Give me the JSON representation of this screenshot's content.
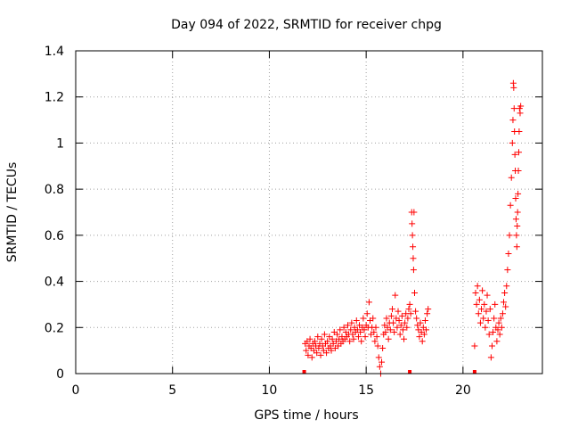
{
  "chart_data": {
    "type": "scatter",
    "title": "Day 094 of 2022, SRMTID for receiver chpg",
    "xlabel": "GPS time / hours",
    "ylabel": "SRMTID / TECUs",
    "xlim": [
      0,
      24.1
    ],
    "ylim": [
      0,
      1.4
    ],
    "x_ticks": [
      0,
      5,
      10,
      15,
      20
    ],
    "x_tick_labels": [
      "0",
      "5",
      "10",
      "15",
      "20"
    ],
    "y_ticks": [
      0,
      0.2,
      0.4,
      0.6,
      0.8,
      1.0,
      1.2,
      1.4
    ],
    "y_tick_labels": [
      "0",
      "0.2",
      "0.4",
      "0.6",
      "0.8",
      "1",
      "1.2",
      "1.4"
    ],
    "grid": true,
    "marker": "plus",
    "color": "#ff0000",
    "baseline_markers_x": [
      11.8,
      17.25,
      20.6
    ],
    "series": [
      {
        "name": "SRMTID",
        "points": [
          [
            11.85,
            0.13
          ],
          [
            11.9,
            0.1
          ],
          [
            11.95,
            0.14
          ],
          [
            12.0,
            0.08
          ],
          [
            12.05,
            0.12
          ],
          [
            12.1,
            0.15
          ],
          [
            12.15,
            0.11
          ],
          [
            12.2,
            0.07
          ],
          [
            12.25,
            0.13
          ],
          [
            12.3,
            0.1
          ],
          [
            12.35,
            0.14
          ],
          [
            12.4,
            0.12
          ],
          [
            12.45,
            0.09
          ],
          [
            12.5,
            0.16
          ],
          [
            12.55,
            0.11
          ],
          [
            12.6,
            0.13
          ],
          [
            12.65,
            0.08
          ],
          [
            12.7,
            0.15
          ],
          [
            12.75,
            0.12
          ],
          [
            12.8,
            0.1
          ],
          [
            12.85,
            0.17
          ],
          [
            12.9,
            0.13
          ],
          [
            12.95,
            0.09
          ],
          [
            13.0,
            0.14
          ],
          [
            13.05,
            0.11
          ],
          [
            13.1,
            0.16
          ],
          [
            13.15,
            0.12
          ],
          [
            13.2,
            0.1
          ],
          [
            13.25,
            0.15
          ],
          [
            13.3,
            0.13
          ],
          [
            13.35,
            0.18
          ],
          [
            13.4,
            0.11
          ],
          [
            13.45,
            0.14
          ],
          [
            13.5,
            0.17
          ],
          [
            13.55,
            0.12
          ],
          [
            13.6,
            0.15
          ],
          [
            13.65,
            0.19
          ],
          [
            13.7,
            0.13
          ],
          [
            13.75,
            0.16
          ],
          [
            13.8,
            0.14
          ],
          [
            13.85,
            0.2
          ],
          [
            13.9,
            0.15
          ],
          [
            13.95,
            0.18
          ],
          [
            14.0,
            0.16
          ],
          [
            14.05,
            0.21
          ],
          [
            14.1,
            0.17
          ],
          [
            14.15,
            0.14
          ],
          [
            14.2,
            0.19
          ],
          [
            14.25,
            0.22
          ],
          [
            14.3,
            0.17
          ],
          [
            14.35,
            0.15
          ],
          [
            14.4,
            0.2
          ],
          [
            14.45,
            0.18
          ],
          [
            14.5,
            0.23
          ],
          [
            14.55,
            0.19
          ],
          [
            14.6,
            0.16
          ],
          [
            14.65,
            0.21
          ],
          [
            14.7,
            0.18
          ],
          [
            14.75,
            0.14
          ],
          [
            14.8,
            0.2
          ],
          [
            14.85,
            0.24
          ],
          [
            14.9,
            0.19
          ],
          [
            14.95,
            0.16
          ],
          [
            15.0,
            0.21
          ],
          [
            15.05,
            0.26
          ],
          [
            15.1,
            0.2
          ],
          [
            15.15,
            0.31
          ],
          [
            15.2,
            0.23
          ],
          [
            15.25,
            0.17
          ],
          [
            15.3,
            0.2
          ],
          [
            15.35,
            0.24
          ],
          [
            15.4,
            0.18
          ],
          [
            15.45,
            0.14
          ],
          [
            15.5,
            0.2
          ],
          [
            15.55,
            0.16
          ],
          [
            15.6,
            0.12
          ],
          [
            15.65,
            0.07
          ],
          [
            15.7,
            0.03
          ],
          [
            15.75,
            0.0
          ],
          [
            15.8,
            0.05
          ],
          [
            15.85,
            0.11
          ],
          [
            15.9,
            0.17
          ],
          [
            15.95,
            0.21
          ],
          [
            16.0,
            0.18
          ],
          [
            16.05,
            0.24
          ],
          [
            16.1,
            0.2
          ],
          [
            16.15,
            0.15
          ],
          [
            16.2,
            0.22
          ],
          [
            16.25,
            0.19
          ],
          [
            16.3,
            0.25
          ],
          [
            16.35,
            0.28
          ],
          [
            16.4,
            0.22
          ],
          [
            16.45,
            0.18
          ],
          [
            16.5,
            0.34
          ],
          [
            16.55,
            0.24
          ],
          [
            16.6,
            0.2
          ],
          [
            16.65,
            0.27
          ],
          [
            16.7,
            0.23
          ],
          [
            16.75,
            0.17
          ],
          [
            16.8,
            0.21
          ],
          [
            16.85,
            0.25
          ],
          [
            16.9,
            0.19
          ],
          [
            16.95,
            0.15
          ],
          [
            17.0,
            0.22
          ],
          [
            17.05,
            0.26
          ],
          [
            17.1,
            0.2
          ],
          [
            17.15,
            0.24
          ],
          [
            17.2,
            0.28
          ],
          [
            17.25,
            0.3
          ],
          [
            17.3,
            0.26
          ],
          [
            17.35,
            0.7
          ],
          [
            17.37,
            0.65
          ],
          [
            17.39,
            0.6
          ],
          [
            17.41,
            0.55
          ],
          [
            17.43,
            0.5
          ],
          [
            17.45,
            0.45
          ],
          [
            17.47,
            0.7
          ],
          [
            17.5,
            0.35
          ],
          [
            17.55,
            0.27
          ],
          [
            17.6,
            0.24
          ],
          [
            17.65,
            0.21
          ],
          [
            17.7,
            0.19
          ],
          [
            17.75,
            0.16
          ],
          [
            17.8,
            0.22
          ],
          [
            17.85,
            0.18
          ],
          [
            17.9,
            0.14
          ],
          [
            17.95,
            0.2
          ],
          [
            18.0,
            0.17
          ],
          [
            18.05,
            0.23
          ],
          [
            18.1,
            0.19
          ],
          [
            18.15,
            0.26
          ],
          [
            18.2,
            0.28
          ],
          [
            20.6,
            0.12
          ],
          [
            20.65,
            0.35
          ],
          [
            20.7,
            0.3
          ],
          [
            20.75,
            0.38
          ],
          [
            20.8,
            0.26
          ],
          [
            20.85,
            0.32
          ],
          [
            20.9,
            0.22
          ],
          [
            20.95,
            0.28
          ],
          [
            21.0,
            0.36
          ],
          [
            21.05,
            0.24
          ],
          [
            21.1,
            0.3
          ],
          [
            21.15,
            0.2
          ],
          [
            21.2,
            0.27
          ],
          [
            21.25,
            0.34
          ],
          [
            21.3,
            0.23
          ],
          [
            21.35,
            0.17
          ],
          [
            21.4,
            0.28
          ],
          [
            21.45,
            0.07
          ],
          [
            21.5,
            0.12
          ],
          [
            21.55,
            0.18
          ],
          [
            21.6,
            0.24
          ],
          [
            21.65,
            0.3
          ],
          [
            21.7,
            0.2
          ],
          [
            21.75,
            0.14
          ],
          [
            21.8,
            0.19
          ],
          [
            21.85,
            0.22
          ],
          [
            21.9,
            0.17
          ],
          [
            21.95,
            0.24
          ],
          [
            22.0,
            0.2
          ],
          [
            22.05,
            0.26
          ],
          [
            22.1,
            0.31
          ],
          [
            22.15,
            0.35
          ],
          [
            22.2,
            0.29
          ],
          [
            22.25,
            0.38
          ],
          [
            22.3,
            0.45
          ],
          [
            22.35,
            0.52
          ],
          [
            22.4,
            0.6
          ],
          [
            22.45,
            0.73
          ],
          [
            22.5,
            0.85
          ],
          [
            22.55,
            1.0
          ],
          [
            22.58,
            1.1
          ],
          [
            22.6,
            1.26
          ],
          [
            22.62,
            1.24
          ],
          [
            22.64,
            1.15
          ],
          [
            22.66,
            1.05
          ],
          [
            22.68,
            0.95
          ],
          [
            22.7,
            0.88
          ],
          [
            22.72,
            0.76
          ],
          [
            22.74,
            0.67
          ],
          [
            22.76,
            0.6
          ],
          [
            22.78,
            0.55
          ],
          [
            22.8,
            0.64
          ],
          [
            22.82,
            0.7
          ],
          [
            22.84,
            0.78
          ],
          [
            22.86,
            0.88
          ],
          [
            22.88,
            0.96
          ],
          [
            22.9,
            1.05
          ],
          [
            22.92,
            1.15
          ],
          [
            22.95,
            1.13
          ],
          [
            22.98,
            1.16
          ]
        ]
      }
    ]
  }
}
